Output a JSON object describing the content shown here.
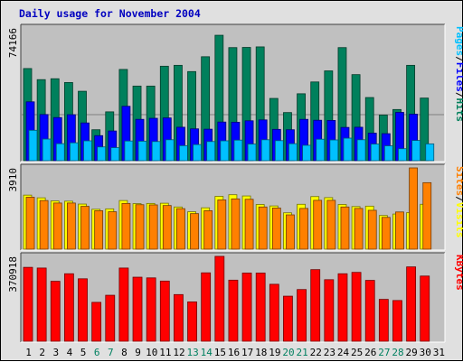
{
  "chart_data": {
    "type": "bar",
    "title": "Daily usage for November 2004",
    "categories": [
      "1",
      "2",
      "3",
      "4",
      "5",
      "6",
      "7",
      "8",
      "9",
      "10",
      "11",
      "12",
      "13",
      "14",
      "15",
      "16",
      "17",
      "18",
      "19",
      "20",
      "21",
      "22",
      "23",
      "24",
      "25",
      "26",
      "27",
      "28",
      "29",
      "30",
      "31"
    ],
    "weekend_days": [
      "6",
      "7",
      "13",
      "14",
      "20",
      "21",
      "27",
      "28"
    ],
    "panels": [
      {
        "name": "hits-files-pages",
        "ylabel": "74166",
        "ylim": [
          0,
          74166
        ],
        "legend": [
          "Pages",
          "/",
          "Files",
          "/",
          "Hits"
        ],
        "series": [
          {
            "name": "Hits",
            "color": "#00805c",
            "values": [
              51500,
              45300,
              45800,
              43700,
              38800,
              17300,
              27300,
              51000,
              41700,
              41700,
              52800,
              53300,
              49800,
              58100,
              70100,
              63200,
              63300,
              63600,
              34800,
              26900,
              37400,
              44000,
              50200,
              63200,
              48100,
              35300,
              25500,
              28600,
              53300,
              35000,
              0
            ]
          },
          {
            "name": "Files",
            "color": "#0000ff",
            "values": [
              32900,
              25800,
              24100,
              25700,
              21100,
              14000,
              16600,
              30400,
              23100,
              23700,
              23900,
              18700,
              17800,
              17600,
              21600,
              21500,
              22300,
              22800,
              17500,
              17300,
              23100,
              22600,
              22500,
              18600,
              18700,
              15400,
              15100,
              27000,
              26000,
              0,
              0
            ]
          },
          {
            "name": "Pages",
            "color": "#00c0ff",
            "values": [
              17000,
              12100,
              9500,
              10000,
              11100,
              7700,
              7300,
              11000,
              10900,
              10700,
              11700,
              8400,
              9000,
              10700,
              11100,
              11500,
              9300,
              11700,
              11200,
              9500,
              8600,
              12000,
              11600,
              12600,
              11700,
              9300,
              8300,
              6700,
              11300,
              9400,
              0
            ]
          }
        ]
      },
      {
        "name": "visits-sites",
        "ylabel": "3910",
        "ylim": [
          0,
          3910
        ],
        "legend": [
          "Sites",
          "/",
          "Visits"
        ],
        "series": [
          {
            "name": "Visits",
            "color": "#ffff00",
            "values": [
              2600,
              2470,
              2320,
              2310,
              2170,
              1920,
              1940,
              2340,
              2190,
              2200,
              2210,
              2030,
              1800,
              1990,
              2540,
              2620,
              2560,
              2150,
              2080,
              1750,
              2160,
              2530,
              2480,
              2150,
              2050,
              2070,
              1620,
              1690,
              1760,
              2160,
              0
            ]
          },
          {
            "name": "Sites",
            "color": "#ff8000",
            "values": [
              2500,
              2340,
              2220,
              2220,
              2060,
              1850,
              1800,
              2200,
              2140,
              2130,
              2100,
              1950,
              1710,
              1850,
              2370,
              2420,
              2400,
              2030,
              1980,
              1650,
              1960,
              2350,
              2350,
              2030,
              1960,
              1870,
              1530,
              1790,
              3910,
              3200,
              0
            ]
          }
        ]
      },
      {
        "name": "kbytes",
        "ylabel": "370918",
        "ylim": [
          0,
          370918
        ],
        "legend": [
          "KBytes"
        ],
        "series": [
          {
            "name": "KBytes",
            "color": "#ff0000",
            "values": [
              323000,
              320000,
              262000,
              295000,
              273000,
              170000,
              201000,
              320000,
              280000,
              277000,
              263000,
              204000,
              172000,
              299000,
              371000,
              267000,
              298000,
              298000,
              249000,
              197000,
              226000,
              313000,
              269000,
              295000,
              301000,
              266000,
              183000,
              178000,
              325000,
              285000,
              0
            ]
          }
        ]
      }
    ]
  }
}
